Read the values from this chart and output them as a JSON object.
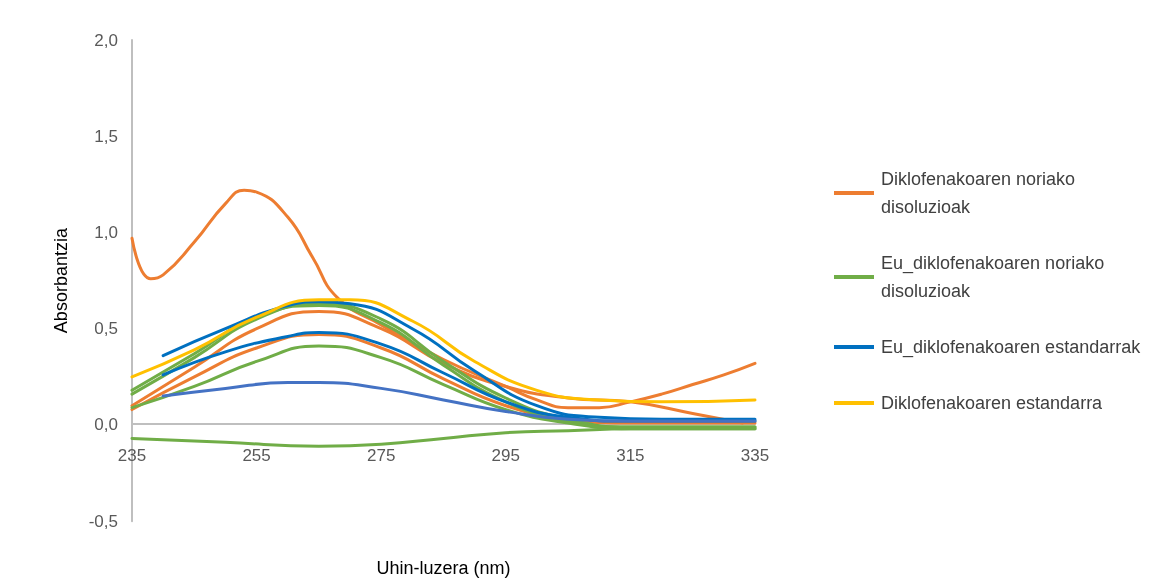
{
  "chart_data": {
    "type": "line",
    "xlabel": "Uhin-luzera (nm)",
    "ylabel": "Absorbantzia",
    "xlim": [
      235,
      335
    ],
    "xticks": [
      235,
      255,
      275,
      295,
      315,
      335
    ],
    "ylim": [
      -0.5,
      2.0
    ],
    "yticks": [
      {
        "value": -0.5,
        "label": "-0,5"
      },
      {
        "value": 0,
        "label": "0,0"
      },
      {
        "value": 0.5,
        "label": "0,5"
      },
      {
        "value": 1,
        "label": "1,0"
      },
      {
        "value": 1.5,
        "label": "1,5"
      },
      {
        "value": 2,
        "label": "2,0"
      }
    ],
    "grid": false,
    "legend": "right",
    "marker": "none",
    "line_style": "solid",
    "series": [
      {
        "name": "Diklofenakoaren noriako disoluzioak",
        "color": "#ed7d31",
        "x": [
          235,
          238,
          240,
          245,
          250,
          253,
          255,
          260,
          264,
          268,
          275,
          285,
          295,
          300,
          305,
          310,
          315,
          320,
          325,
          330,
          335
        ],
        "values": [
          0.97,
          0.76,
          0.78,
          0.95,
          1.15,
          1.22,
          1.21,
          1.08,
          0.87,
          0.66,
          0.52,
          0.34,
          0.2,
          0.13,
          0.09,
          0.09,
          0.12,
          0.16,
          0.21,
          0.26,
          0.32
        ]
      },
      {
        "color": "#ed7d31",
        "x": [
          235,
          245,
          255,
          265,
          275,
          285,
          295,
          305,
          315,
          325,
          333
        ],
        "values": [
          0.1,
          0.3,
          0.5,
          0.59,
          0.5,
          0.32,
          0.2,
          0.14,
          0.12,
          0.06,
          0.01
        ]
      },
      {
        "color": "#ed7d31",
        "x": [
          235,
          245,
          255,
          265,
          275,
          285,
          295,
          305,
          315,
          335
        ],
        "values": [
          0.08,
          0.25,
          0.4,
          0.47,
          0.4,
          0.24,
          0.1,
          0.03,
          0.01,
          0.01
        ]
      },
      {
        "name": "Eu_diklofenakoaren noriako disoluzioak",
        "color": "#70ad47",
        "x": [
          235,
          245,
          255,
          265,
          275,
          285,
          295,
          305,
          315,
          335
        ],
        "values": [
          0.16,
          0.35,
          0.55,
          0.63,
          0.55,
          0.33,
          0.14,
          0.03,
          -0.01,
          -0.01
        ]
      },
      {
        "color": "#70ad47",
        "x": [
          235,
          245,
          255,
          265,
          275,
          285,
          295,
          305,
          315,
          335
        ],
        "values": [
          0.18,
          0.37,
          0.56,
          0.62,
          0.53,
          0.31,
          0.12,
          0.02,
          -0.01,
          -0.01
        ]
      },
      {
        "color": "#70ad47",
        "x": [
          235,
          245,
          255,
          265,
          275,
          285,
          295,
          305,
          315,
          335
        ],
        "values": [
          0.09,
          0.2,
          0.33,
          0.41,
          0.35,
          0.21,
          0.08,
          0.01,
          -0.02,
          -0.02
        ]
      },
      {
        "color": "#70ad47",
        "x": [
          235,
          250,
          265,
          275,
          285,
          295,
          305,
          315,
          335
        ],
        "values": [
          -0.07,
          -0.09,
          -0.11,
          -0.1,
          -0.07,
          -0.04,
          -0.03,
          -0.02,
          -0.02
        ]
      },
      {
        "name": "Eu_diklofenakoaren estandarrak",
        "color": "#0070c0",
        "x": [
          240,
          250,
          260,
          265,
          270,
          280,
          290,
          300,
          310,
          320,
          335
        ],
        "values": [
          0.36,
          0.5,
          0.62,
          0.64,
          0.63,
          0.5,
          0.28,
          0.1,
          0.04,
          0.03,
          0.03
        ]
      },
      {
        "color": "#0070c0",
        "x": [
          240,
          250,
          260,
          265,
          275,
          285,
          295,
          305,
          315,
          335
        ],
        "values": [
          0.26,
          0.38,
          0.46,
          0.48,
          0.42,
          0.27,
          0.12,
          0.04,
          0.02,
          0.02
        ]
      },
      {
        "color": "#4472c4",
        "x": [
          240,
          250,
          260,
          265,
          275,
          285,
          295,
          305,
          315,
          335
        ],
        "values": [
          0.15,
          0.19,
          0.22,
          0.22,
          0.19,
          0.13,
          0.07,
          0.03,
          0.02,
          0.02
        ]
      },
      {
        "name": "Diklofenakoaren estandarra",
        "color": "#ffc000",
        "x": [
          235,
          245,
          255,
          265,
          270,
          280,
          290,
          300,
          310,
          320,
          335
        ],
        "values": [
          0.25,
          0.39,
          0.56,
          0.65,
          0.65,
          0.54,
          0.33,
          0.18,
          0.13,
          0.12,
          0.13
        ]
      }
    ]
  }
}
